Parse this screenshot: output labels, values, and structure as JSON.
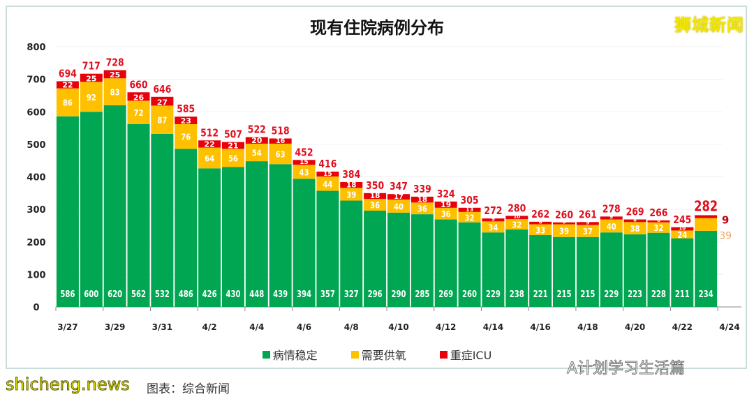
{
  "watermark": "狮城新闻",
  "caption": "图表：综合新闻",
  "site_watermark": "shicheng.news",
  "wechat_watermark": "A计划学习生活篇",
  "colors": {
    "stable": "#00a651",
    "oxygen": "#ffc000",
    "icu": "#e8000b",
    "total": "#e0101e"
  },
  "chart_data": {
    "type": "bar",
    "stacked": true,
    "title": "现有住院病例分布",
    "ylim": [
      0,
      800
    ],
    "yticks": [
      0,
      100,
      200,
      300,
      400,
      500,
      600,
      700,
      800
    ],
    "xticks": [
      "3/27",
      "3/29",
      "3/31",
      "4/2",
      "4/4",
      "4/6",
      "4/8",
      "4/10",
      "4/12",
      "4/14",
      "4/16",
      "4/18",
      "4/20",
      "4/22",
      "4/24"
    ],
    "legend_position": "bottom",
    "categories": [
      "3/27",
      "3/28",
      "3/29",
      "3/30",
      "3/31",
      "4/1",
      "4/2",
      "4/3",
      "4/4",
      "4/5",
      "4/6",
      "4/7",
      "4/8",
      "4/9",
      "4/10",
      "4/11",
      "4/12",
      "4/13",
      "4/14",
      "4/15",
      "4/16",
      "4/17",
      "4/18",
      "4/19",
      "4/20",
      "4/21",
      "4/22",
      "4/23"
    ],
    "series": [
      {
        "name": "病情稳定",
        "values": [
          586,
          600,
          620,
          562,
          532,
          486,
          426,
          430,
          448,
          439,
          394,
          357,
          327,
          296,
          290,
          285,
          269,
          260,
          229,
          238,
          221,
          215,
          215,
          229,
          223,
          228,
          211,
          234
        ]
      },
      {
        "name": "需要供氧",
        "values": [
          86,
          92,
          83,
          72,
          87,
          76,
          64,
          56,
          54,
          63,
          43,
          44,
          39,
          36,
          40,
          36,
          36,
          32,
          34,
          32,
          33,
          39,
          37,
          40,
          38,
          32,
          24,
          39
        ]
      },
      {
        "name": "重症ICU",
        "values": [
          22,
          25,
          25,
          26,
          27,
          23,
          22,
          21,
          20,
          16,
          15,
          15,
          18,
          18,
          17,
          18,
          19,
          13,
          9,
          10,
          8,
          6,
          9,
          9,
          8,
          6,
          10,
          9
        ]
      }
    ],
    "totals": [
      694,
      717,
      728,
      660,
      646,
      585,
      512,
      507,
      522,
      518,
      452,
      416,
      384,
      350,
      347,
      339,
      324,
      305,
      272,
      280,
      262,
      260,
      261,
      278,
      269,
      266,
      245,
      282
    ]
  }
}
